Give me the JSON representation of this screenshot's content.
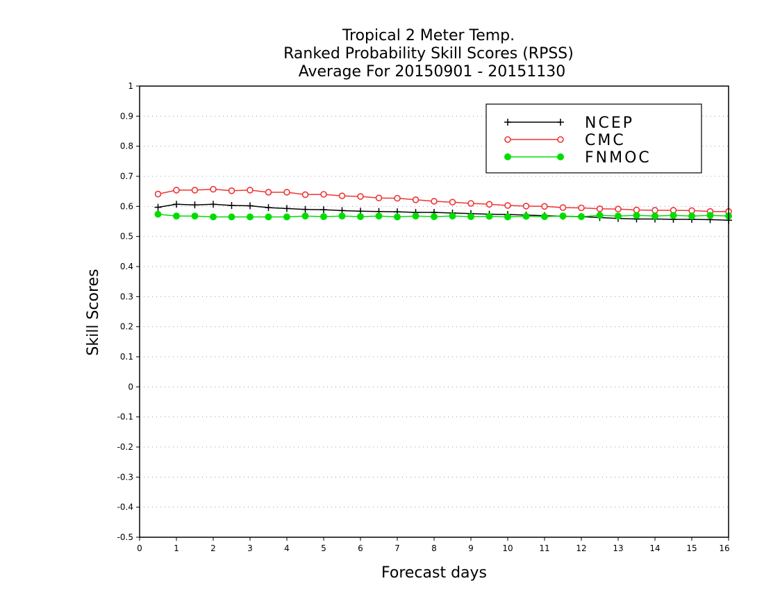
{
  "chart_data": {
    "type": "line",
    "title_lines": [
      "Tropical 2 Meter Temp.",
      "Ranked Probability Skill Scores (RPSS)",
      "Average For 20150901 - 20151130"
    ],
    "xlabel": "Forecast days",
    "ylabel": "Skill Scores",
    "xlim": [
      0,
      16
    ],
    "ylim": [
      -0.5,
      1
    ],
    "xticks": [
      "0",
      "1",
      "2",
      "3",
      "4",
      "5",
      "6",
      "7",
      "8",
      "9",
      "10",
      "11",
      "12",
      "13",
      "14",
      "15",
      "16"
    ],
    "yticks": [
      "-0.5",
      "-0.4",
      "-0.3",
      "-0.2",
      "-0.1",
      "0",
      "0.1",
      "0.2",
      "0.3",
      "0.4",
      "0.5",
      "0.6",
      "0.7",
      "0.8",
      "0.9",
      "1"
    ],
    "grid": "horizontal dotted",
    "legend_position": "top-right",
    "x": [
      0.5,
      1,
      1.5,
      2,
      2.5,
      3,
      3.5,
      4,
      4.5,
      5,
      5.5,
      6,
      6.5,
      7,
      7.5,
      8,
      8.5,
      9,
      9.5,
      10,
      10.5,
      11,
      11.5,
      12,
      12.5,
      13,
      13.5,
      14,
      14.5,
      15,
      15.5,
      16
    ],
    "series": [
      {
        "name": "NCEP",
        "color": "#000000",
        "marker": "plus",
        "values": [
          0.597,
          0.607,
          0.605,
          0.607,
          0.603,
          0.602,
          0.596,
          0.593,
          0.59,
          0.589,
          0.586,
          0.584,
          0.583,
          0.582,
          0.58,
          0.58,
          0.578,
          0.576,
          0.574,
          0.573,
          0.571,
          0.569,
          0.567,
          0.566,
          0.563,
          0.56,
          0.558,
          0.558,
          0.557,
          0.557,
          0.556,
          0.554
        ]
      },
      {
        "name": "CMC",
        "color": "#ee3333",
        "marker": "open-circle",
        "values": [
          0.641,
          0.654,
          0.654,
          0.657,
          0.652,
          0.654,
          0.647,
          0.647,
          0.639,
          0.64,
          0.635,
          0.633,
          0.628,
          0.627,
          0.622,
          0.617,
          0.614,
          0.61,
          0.607,
          0.603,
          0.601,
          0.6,
          0.596,
          0.595,
          0.592,
          0.591,
          0.588,
          0.587,
          0.587,
          0.586,
          0.583,
          0.583
        ]
      },
      {
        "name": "FNMOC",
        "color": "#00dd00",
        "marker": "filled-circle",
        "values": [
          0.574,
          0.568,
          0.568,
          0.565,
          0.565,
          0.565,
          0.565,
          0.565,
          0.568,
          0.566,
          0.568,
          0.566,
          0.568,
          0.565,
          0.568,
          0.566,
          0.568,
          0.566,
          0.567,
          0.565,
          0.567,
          0.566,
          0.568,
          0.566,
          0.57,
          0.568,
          0.57,
          0.568,
          0.57,
          0.568,
          0.57,
          0.568
        ]
      }
    ]
  }
}
